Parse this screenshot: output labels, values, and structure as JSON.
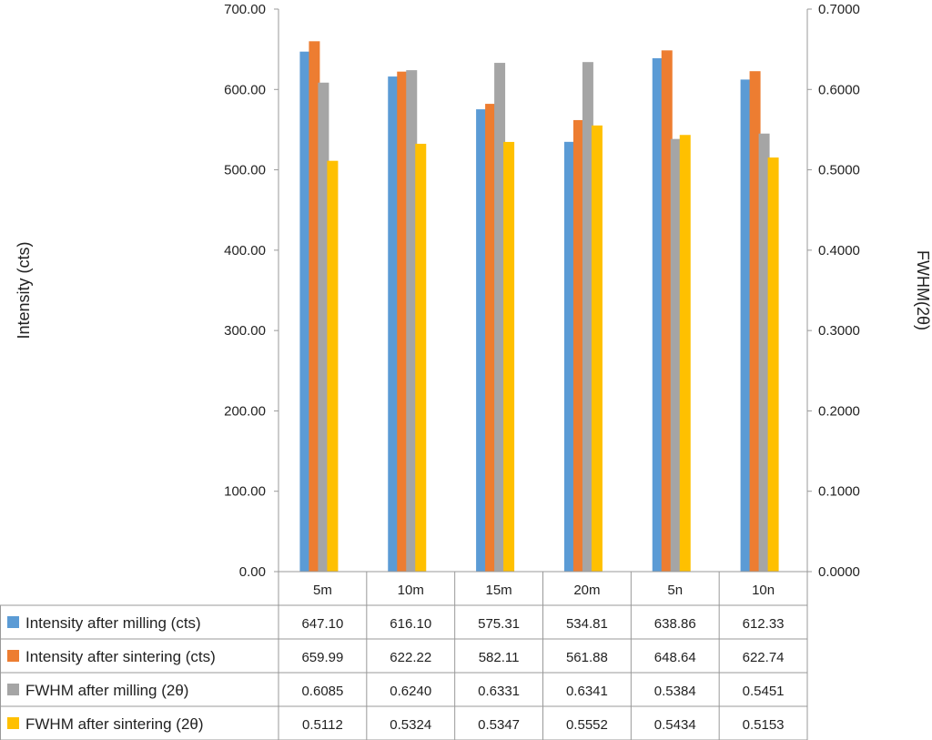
{
  "chart_data": {
    "type": "bar",
    "categories": [
      "5m",
      "10m",
      "15m",
      "20m",
      "5n",
      "10n"
    ],
    "series": [
      {
        "name": "Intensity after milling (cts)",
        "axis": "left",
        "color": "#5b9bd5",
        "values": [
          647.1,
          616.1,
          575.31,
          534.81,
          638.86,
          612.33
        ],
        "labels": [
          "647.10",
          "616.10",
          "575.31",
          "534.81",
          "638.86",
          "612.33"
        ]
      },
      {
        "name": "Intensity after sintering (cts)",
        "axis": "left",
        "color": "#ed7d31",
        "values": [
          659.99,
          622.22,
          582.11,
          561.88,
          648.64,
          622.74
        ],
        "labels": [
          "659.99",
          "622.22",
          "582.11",
          "561.88",
          "648.64",
          "622.74"
        ]
      },
      {
        "name": "FWHM after milling (2θ)",
        "axis": "right",
        "color": "#a5a5a5",
        "values": [
          0.6085,
          0.624,
          0.6331,
          0.6341,
          0.5384,
          0.5451
        ],
        "labels": [
          "0.6085",
          "0.6240",
          "0.6331",
          "0.6341",
          "0.5384",
          "0.5451"
        ]
      },
      {
        "name": "FWHM after sintering (2θ)",
        "axis": "right",
        "color": "#ffc000",
        "values": [
          0.5112,
          0.5324,
          0.5347,
          0.5552,
          0.5434,
          0.5153
        ],
        "labels": [
          "0.5112",
          "0.5324",
          "0.5347",
          "0.5552",
          "0.5434",
          "0.5153"
        ]
      }
    ],
    "ylabel": "Intensity (cts)",
    "y2label": "FWHM(2θ)",
    "ylim": [
      0,
      700
    ],
    "y2lim": [
      0,
      0.7
    ],
    "yticks": [
      "0.00",
      "100.00",
      "200.00",
      "300.00",
      "400.00",
      "500.00",
      "600.00",
      "700.00"
    ],
    "y2ticks": [
      "0.0000",
      "0.1000",
      "0.2000",
      "0.3000",
      "0.4000",
      "0.5000",
      "0.6000",
      "0.7000"
    ],
    "grid": false,
    "legend": "data-table-below"
  }
}
